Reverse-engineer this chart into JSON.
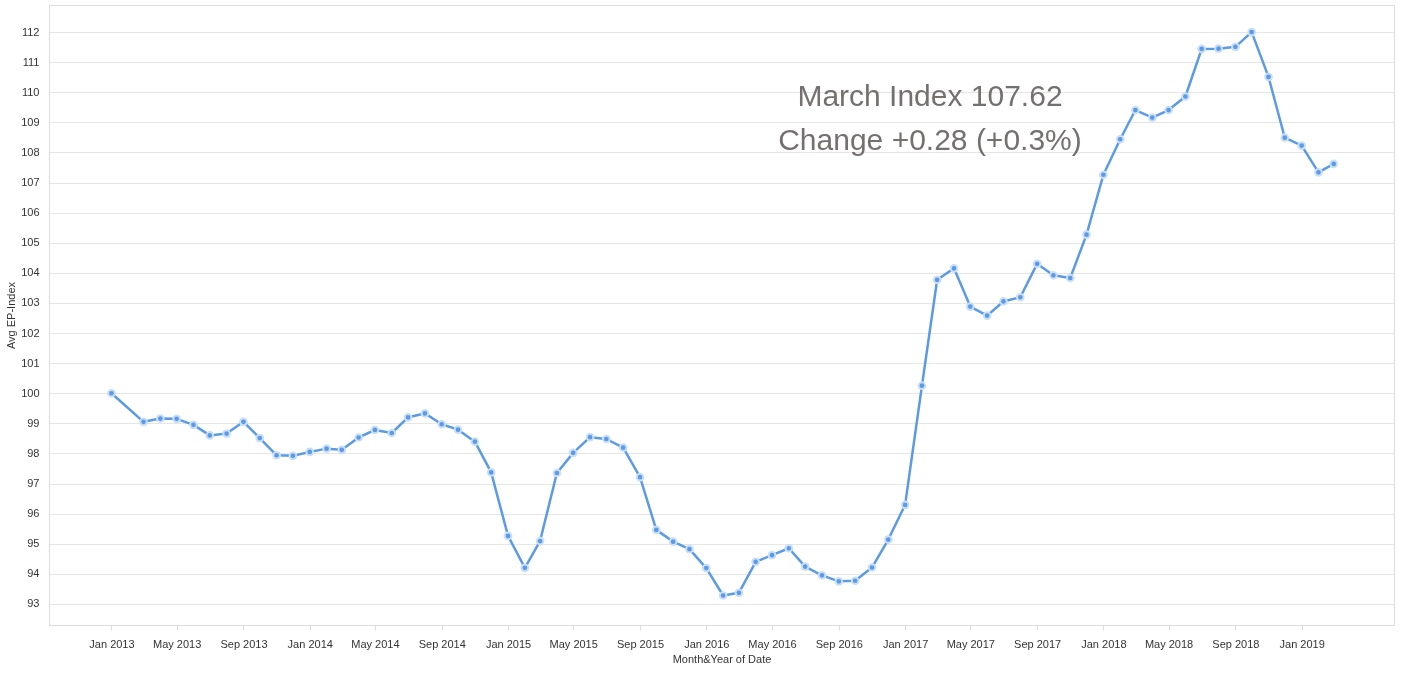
{
  "chart_data": {
    "type": "line",
    "xlabel": "Month&Year of Date",
    "ylabel": "Avg EP-Index",
    "annotations": [
      "March Index 107.62",
      "Change +0.28 (+0.3%)"
    ],
    "x": [
      "2013-01",
      "2013-03",
      "2013-04",
      "2013-05",
      "2013-06",
      "2013-07",
      "2013-08",
      "2013-09",
      "2013-10",
      "2013-11",
      "2013-12",
      "2014-01",
      "2014-02",
      "2014-03",
      "2014-04",
      "2014-05",
      "2014-06",
      "2014-07",
      "2014-08",
      "2014-09",
      "2014-10",
      "2014-11",
      "2014-12",
      "2015-01",
      "2015-02",
      "2015-03",
      "2015-04",
      "2015-05",
      "2015-06",
      "2015-07",
      "2015-08",
      "2015-09",
      "2015-10",
      "2015-11",
      "2015-12",
      "2016-01",
      "2016-02",
      "2016-03",
      "2016-04",
      "2016-05",
      "2016-06",
      "2016-07",
      "2016-08",
      "2016-09",
      "2016-10",
      "2016-11",
      "2016-12",
      "2017-01",
      "2017-02",
      "2017-03",
      "2017-04",
      "2017-05",
      "2017-06",
      "2017-07",
      "2017-08",
      "2017-09",
      "2017-10",
      "2017-11",
      "2017-12",
      "2018-01",
      "2018-02",
      "2018-03",
      "2018-04",
      "2018-05",
      "2018-06",
      "2018-07",
      "2018-08",
      "2018-09",
      "2018-10",
      "2018-11",
      "2018-12",
      "2019-01",
      "2019-02",
      "2019-03"
    ],
    "series": [
      {
        "color": "#5b9be6",
        "values": [
          100.0,
          99.05,
          99.16,
          99.15,
          98.95,
          98.6,
          98.66,
          99.05,
          98.51,
          97.94,
          97.92,
          98.05,
          98.16,
          98.12,
          98.53,
          98.78,
          98.68,
          99.2,
          99.33,
          98.97,
          98.79,
          98.39,
          97.37,
          95.26,
          94.2,
          95.09,
          97.35,
          98.02,
          98.54,
          98.48,
          98.19,
          97.21,
          95.46,
          95.07,
          94.82,
          94.19,
          93.28,
          93.37,
          94.4,
          94.62,
          94.85,
          94.24,
          93.95,
          93.75,
          93.77,
          94.21,
          95.14,
          96.29,
          100.25,
          103.77,
          104.15,
          102.88,
          102.58,
          103.05,
          103.19,
          104.3,
          103.92,
          103.83,
          105.27,
          107.26,
          108.44,
          109.41,
          109.16,
          109.41,
          109.86,
          111.44,
          111.45,
          111.51,
          112.0,
          110.51,
          108.49,
          108.23,
          107.34,
          107.62
        ]
      }
    ],
    "xlim": [
      "2012-09-08",
      "2019-06-20"
    ],
    "xticks": [
      {
        "value": "2013-01",
        "label": "Jan 2013"
      },
      {
        "value": "2013-05",
        "label": "May 2013"
      },
      {
        "value": "2013-09",
        "label": "Sep 2013"
      },
      {
        "value": "2014-01",
        "label": "Jan 2014"
      },
      {
        "value": "2014-05",
        "label": "May 2014"
      },
      {
        "value": "2014-09",
        "label": "Sep 2014"
      },
      {
        "value": "2015-01",
        "label": "Jan 2015"
      },
      {
        "value": "2015-05",
        "label": "May 2015"
      },
      {
        "value": "2015-09",
        "label": "Sep 2015"
      },
      {
        "value": "2016-01",
        "label": "Jan 2016"
      },
      {
        "value": "2016-05",
        "label": "May 2016"
      },
      {
        "value": "2016-09",
        "label": "Sep 2016"
      },
      {
        "value": "2017-01",
        "label": "Jan 2017"
      },
      {
        "value": "2017-05",
        "label": "May 2017"
      },
      {
        "value": "2017-09",
        "label": "Sep 2017"
      },
      {
        "value": "2018-01",
        "label": "Jan 2018"
      },
      {
        "value": "2018-05",
        "label": "May 2018"
      },
      {
        "value": "2018-09",
        "label": "Sep 2018"
      },
      {
        "value": "2019-01",
        "label": "Jan 2019"
      }
    ],
    "ylim": [
      92.3,
      112.9
    ],
    "yticks": [
      93,
      94,
      95,
      96,
      97,
      98,
      99,
      100,
      101,
      102,
      103,
      104,
      105,
      106,
      107,
      108,
      109,
      110,
      111,
      112
    ],
    "grid": "y",
    "marker": "circle",
    "line_style": "solid"
  }
}
